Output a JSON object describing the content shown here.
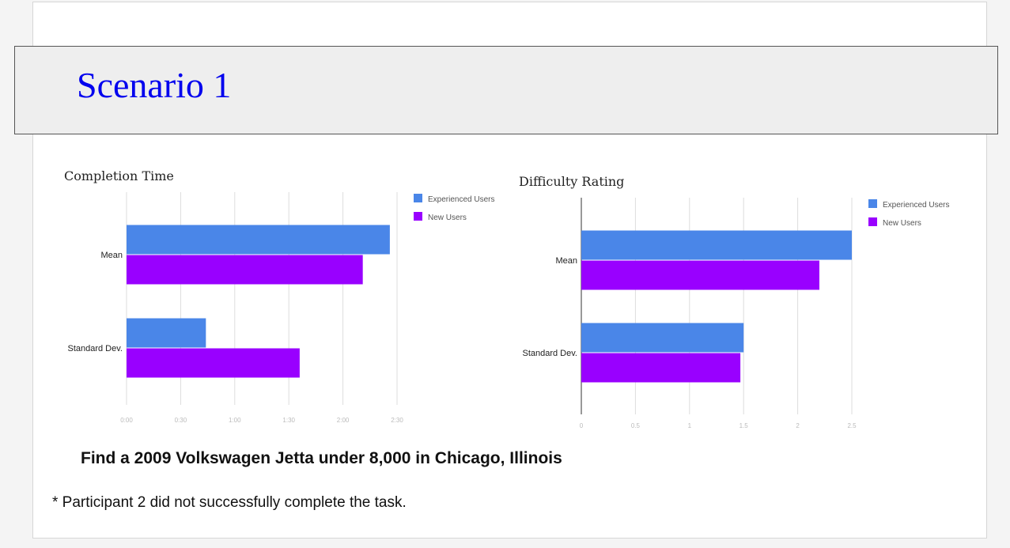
{
  "banner": {
    "title": "Scenario 1"
  },
  "task": "Find a 2009 Volkswagen Jetta under 8,000 in Chicago, Illinois",
  "note": "* Participant 2 did not successfully complete the task.",
  "colors": {
    "experienced": "#4a86e8",
    "new": "#9900ff",
    "grid": "#dddddd",
    "axis_text": "#bbbbbb"
  },
  "chart_data": [
    {
      "type": "bar",
      "orientation": "horizontal",
      "title": "Completion Time",
      "categories": [
        "Mean",
        "Standard Dev."
      ],
      "series": [
        {
          "name": "Experienced Users",
          "values": [
            146,
            44
          ]
        },
        {
          "name": "New Users",
          "values": [
            131,
            96
          ]
        }
      ],
      "value_unit": "seconds",
      "xlim": [
        0,
        150
      ],
      "ticks": [
        0,
        30,
        60,
        90,
        120,
        150
      ],
      "tick_labels": [
        "0:00",
        "0:30",
        "1:00",
        "1:30",
        "2:00",
        "2:30"
      ],
      "grid": true,
      "legend": "top-right"
    },
    {
      "type": "bar",
      "orientation": "horizontal",
      "title": "Difficulty Rating",
      "categories": [
        "Mean",
        "Standard Dev."
      ],
      "series": [
        {
          "name": "Experienced Users",
          "values": [
            2.5,
            1.5
          ]
        },
        {
          "name": "New Users",
          "values": [
            2.2,
            1.47
          ]
        }
      ],
      "xlim": [
        0,
        2.5
      ],
      "ticks": [
        0,
        0.5,
        1,
        1.5,
        2,
        2.5
      ],
      "tick_labels": [
        "0",
        "0.5",
        "1",
        "1.5",
        "2",
        "2.5"
      ],
      "grid": true,
      "legend": "top-right"
    }
  ]
}
